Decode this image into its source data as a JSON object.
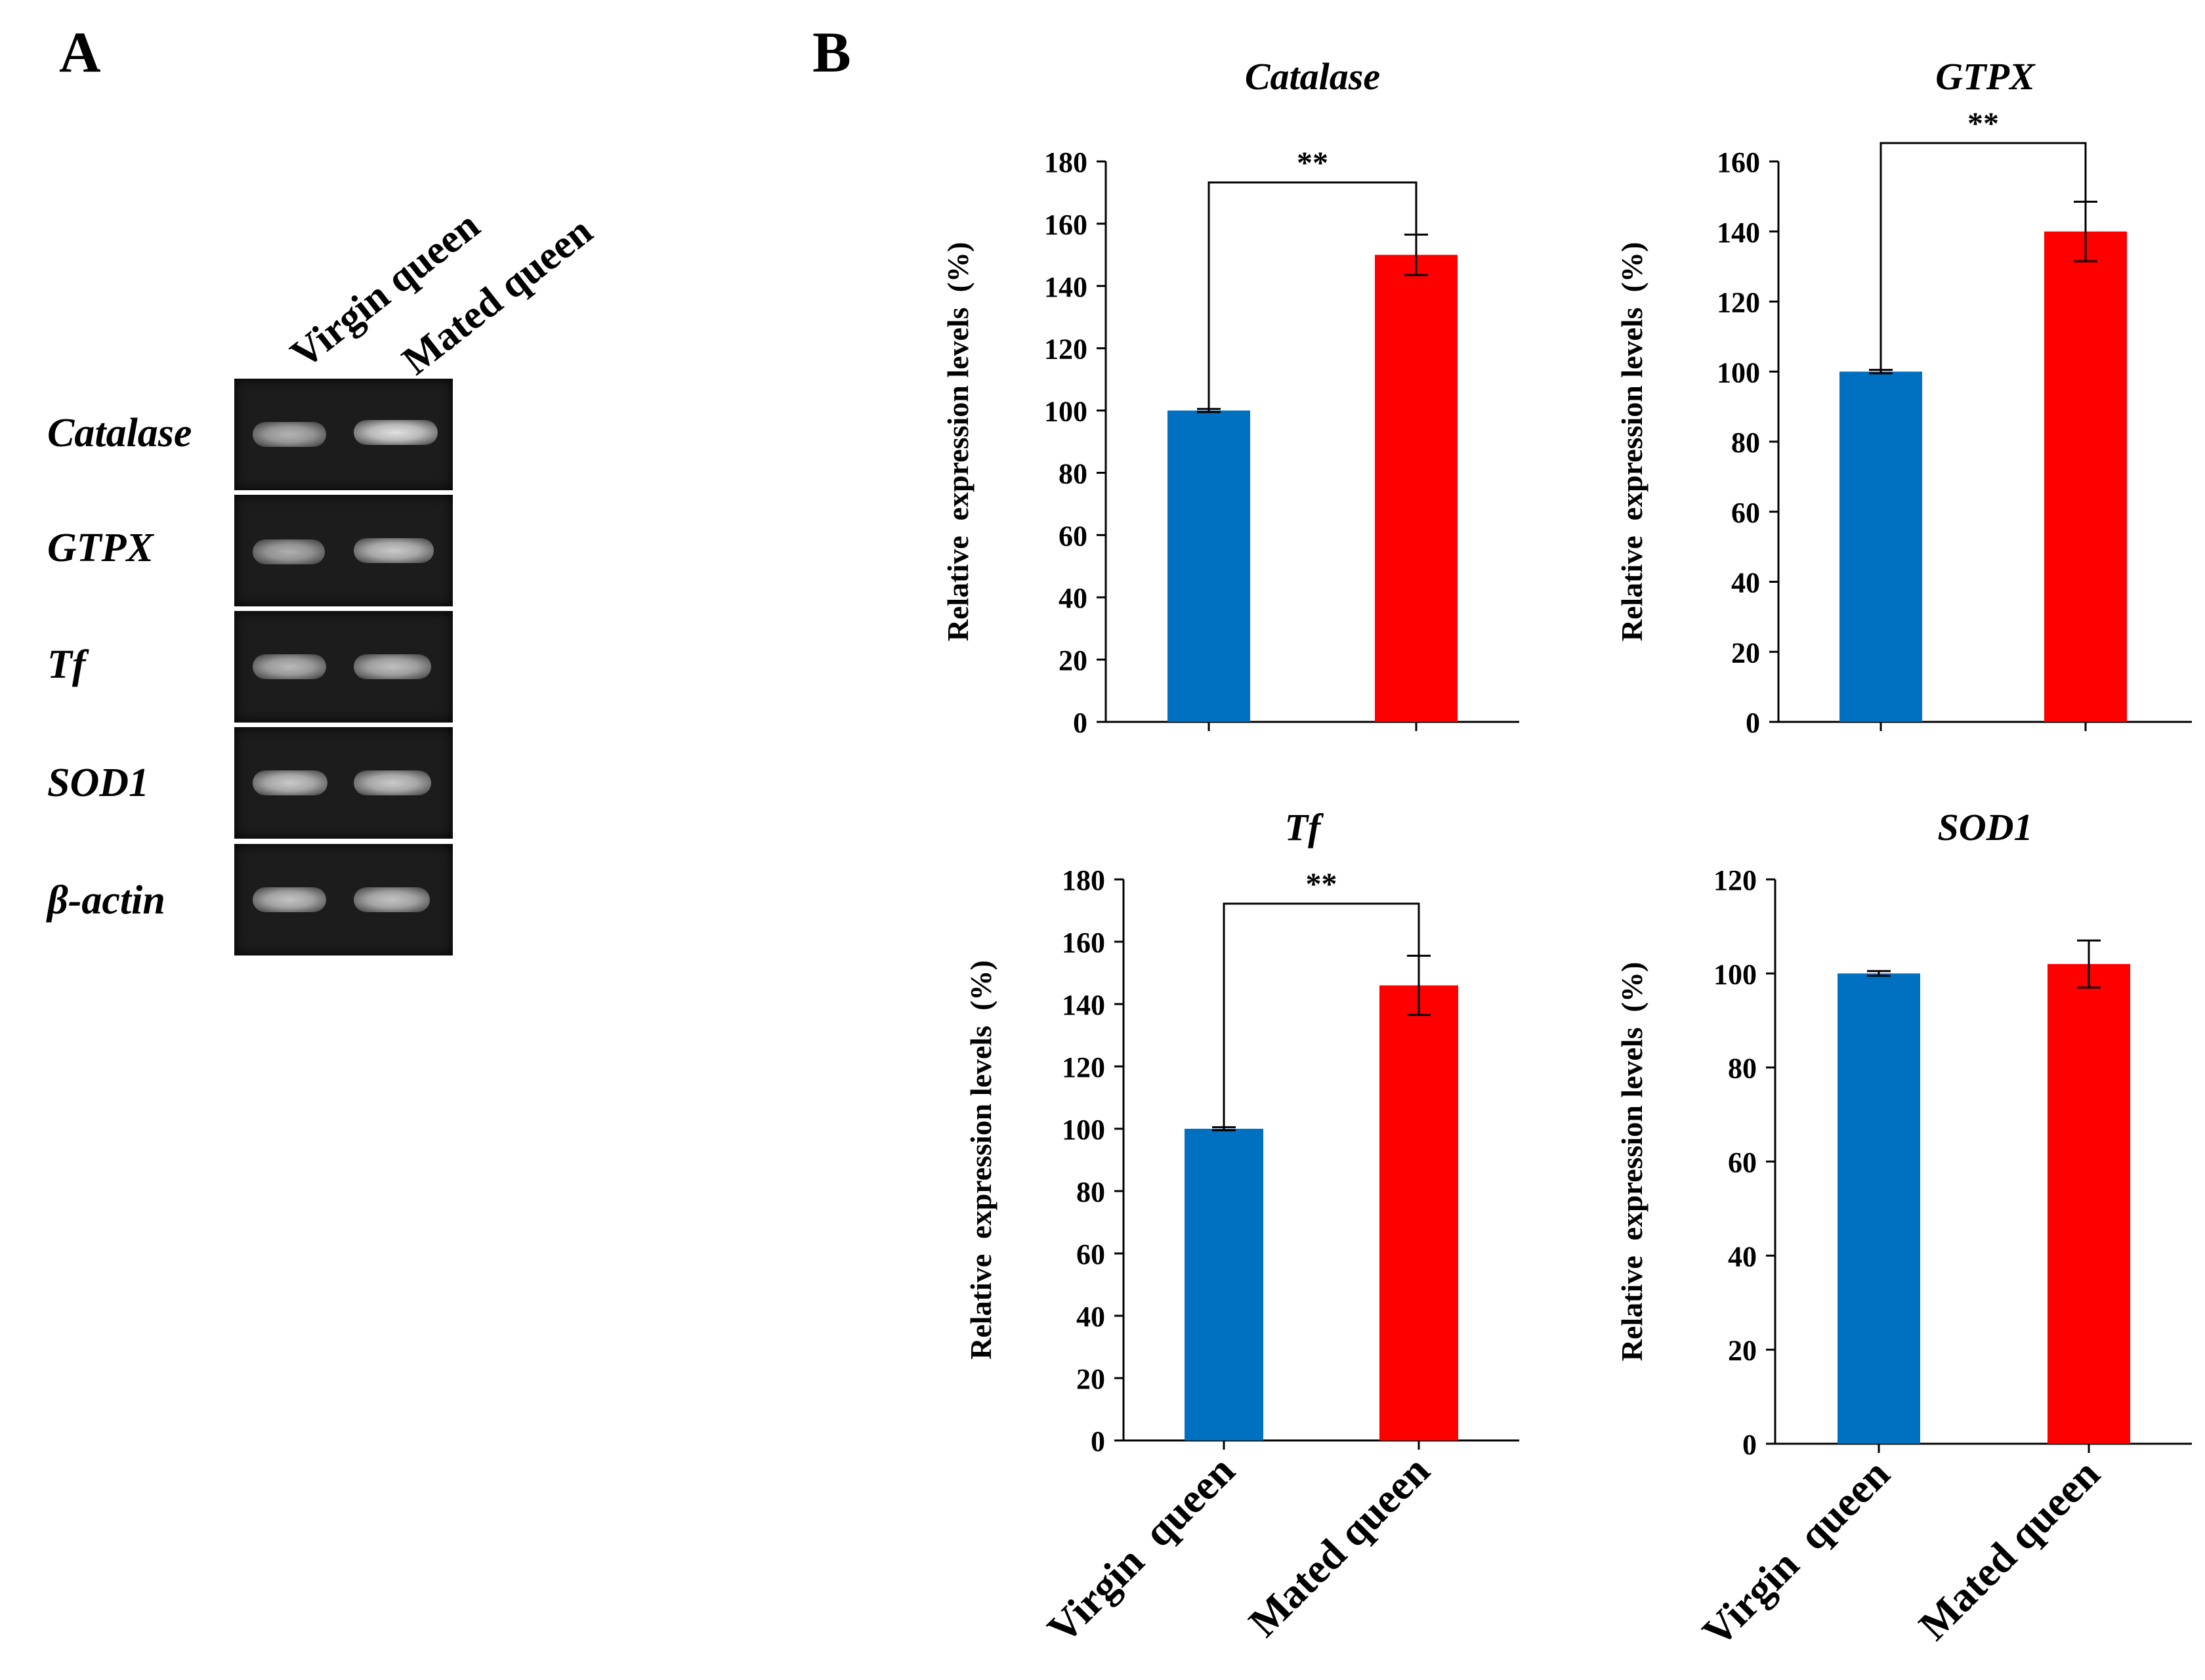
{
  "panel_labels": {
    "a": "A",
    "b": "B"
  },
  "gel": {
    "lane_headers": [
      "Virgin  queen",
      "Mated queen"
    ],
    "rows": [
      {
        "label": "Catalase",
        "bands": [
          0.55,
          0.95
        ]
      },
      {
        "label": "GTPX",
        "bands": [
          0.5,
          0.75
        ]
      },
      {
        "label": "Tf",
        "bands": [
          0.6,
          0.65
        ]
      },
      {
        "label": "SOD1",
        "bands": [
          0.75,
          0.75
        ]
      },
      {
        "label": "β-actin",
        "bands": [
          0.7,
          0.7
        ]
      }
    ]
  },
  "colors": {
    "virgin": "#0070C0",
    "mated": "#FF0000"
  },
  "chart_data": [
    {
      "type": "bar",
      "title": "Catalase",
      "categories": [
        "Virgin  queen",
        "Mated queen"
      ],
      "values": [
        100,
        150
      ],
      "errors": [
        0.5,
        6.5
      ],
      "ylabel": "Relative  expression levels  (%)",
      "ylim": [
        0,
        180
      ],
      "yticks": [
        0,
        20,
        40,
        60,
        80,
        100,
        120,
        140,
        160,
        180
      ],
      "significance": "**",
      "show_xlabels": false
    },
    {
      "type": "bar",
      "title": "GTPX",
      "categories": [
        "Virgin  queen",
        "Mated queen"
      ],
      "values": [
        100,
        140
      ],
      "errors": [
        0.5,
        8.5
      ],
      "ylabel": "Relative  expression levels  (%)",
      "ylim": [
        0,
        160
      ],
      "yticks": [
        0,
        20,
        40,
        60,
        80,
        100,
        120,
        140,
        160
      ],
      "significance": "**",
      "show_xlabels": false
    },
    {
      "type": "bar",
      "title": "Tf",
      "categories": [
        "Virgin  queen",
        "Mated queen"
      ],
      "values": [
        100,
        146
      ],
      "errors": [
        0.5,
        9.5
      ],
      "ylabel": "Relative  expression levels  (%)",
      "ylim": [
        0,
        180
      ],
      "yticks": [
        0,
        20,
        40,
        60,
        80,
        100,
        120,
        140,
        160,
        180
      ],
      "significance": "**",
      "show_xlabels": true
    },
    {
      "type": "bar",
      "title": "SOD1",
      "categories": [
        "Virgin  queen",
        "Mated queen"
      ],
      "values": [
        100,
        102
      ],
      "errors": [
        0.5,
        5
      ],
      "ylabel": "Relative  expression levels  (%)",
      "ylim": [
        0,
        120
      ],
      "yticks": [
        0,
        20,
        40,
        60,
        80,
        100,
        120
      ],
      "significance": "",
      "show_xlabels": true
    }
  ]
}
